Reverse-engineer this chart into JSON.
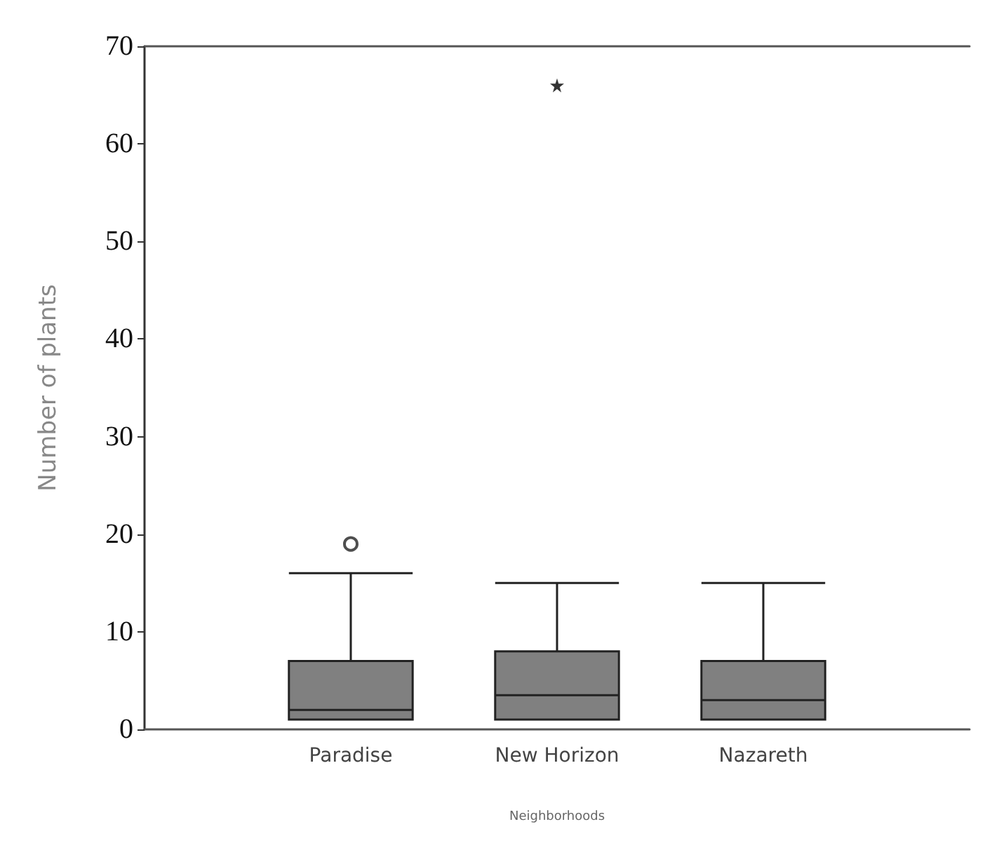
{
  "chart_data": {
    "type": "box",
    "xlabel": "Neighborhoods",
    "ylabel": "Number of plants",
    "categories": [
      "Paradise",
      "New Horizon",
      "Nazareth"
    ],
    "ylim": [
      0,
      70
    ],
    "yticks": [
      0,
      10,
      20,
      30,
      40,
      50,
      60,
      70
    ],
    "boxes": [
      {
        "low": 1,
        "q1": 1,
        "median": 2,
        "q3": 7,
        "high": 16,
        "outliers": [
          19
        ]
      },
      {
        "low": 1,
        "q1": 1,
        "median": 3.5,
        "q3": 8,
        "high": 15
      },
      {
        "low": 1,
        "q1": 1,
        "median": 3,
        "q3": 7,
        "high": 15
      }
    ],
    "color": "#808080",
    "series": [
      {
        "type": "scatter",
        "x": [
          "New Horizon"
        ],
        "values": [
          66
        ],
        "marker": "star",
        "color": "#000000"
      }
    ]
  }
}
